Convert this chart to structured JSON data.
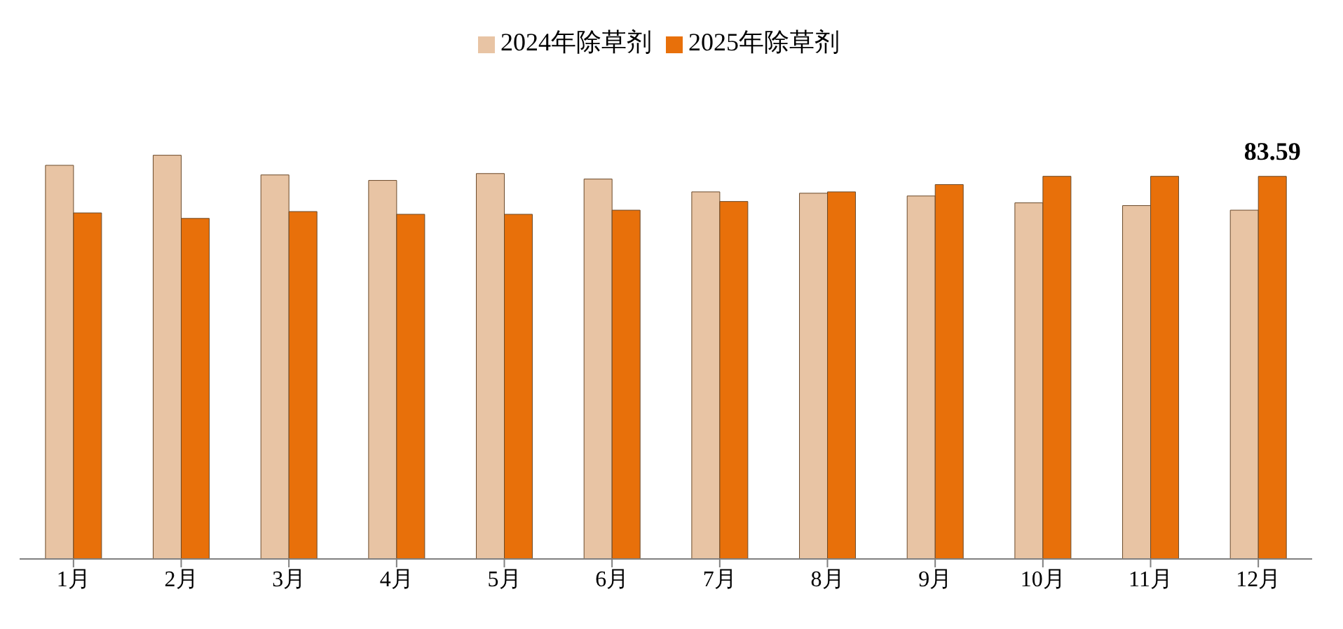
{
  "chart_data": {
    "type": "bar",
    "categories": [
      "1月",
      "2月",
      "3月",
      "4月",
      "5月",
      "6月",
      "7月",
      "8月",
      "9月",
      "10月",
      "11月",
      "12月"
    ],
    "series": [
      {
        "name": "2024年除草剂",
        "color": "#e8c4a4",
        "values": [
          86.0,
          88.2,
          83.9,
          82.7,
          84.2,
          83.0,
          80.2,
          79.9,
          79.3,
          77.8,
          77.2,
          76.2
        ]
      },
      {
        "name": "2025年除草剂",
        "color": "#e8700a",
        "values": [
          75.6,
          74.4,
          75.9,
          75.3,
          75.3,
          76.2,
          78.1,
          80.2,
          81.8,
          83.6,
          83.6,
          83.59
        ],
        "value_labels": [
          null,
          null,
          null,
          null,
          null,
          null,
          null,
          null,
          null,
          null,
          null,
          "83.59"
        ]
      }
    ],
    "legend": "top",
    "grid": false
  }
}
